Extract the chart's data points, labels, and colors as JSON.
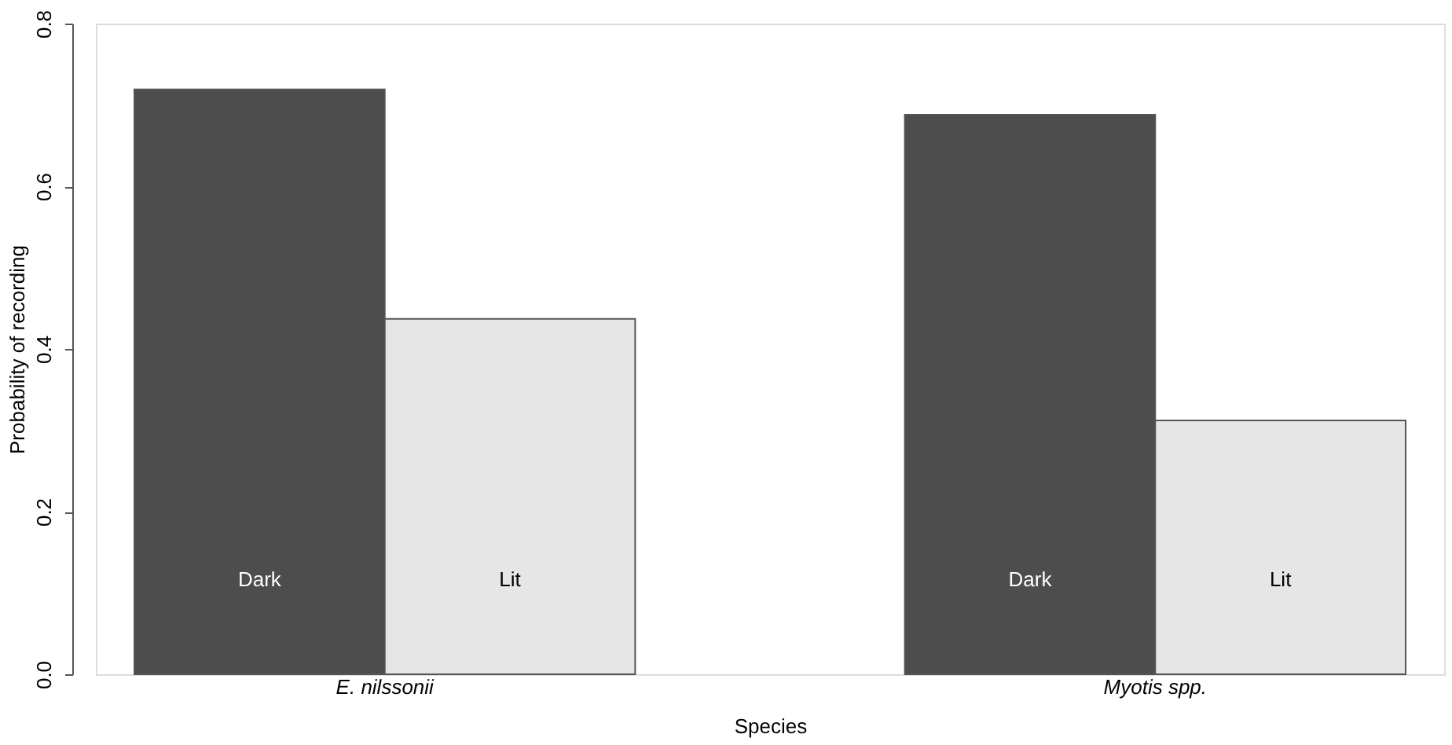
{
  "chart_data": {
    "type": "bar",
    "xlabel": "Species",
    "ylabel": "Probability of recording",
    "categories": [
      "E. nilssonii",
      "Myotis spp."
    ],
    "series": [
      {
        "name": "Dark",
        "color": "#4d4d4d",
        "values": [
          0.719,
          0.688
        ]
      },
      {
        "name": "Lit",
        "color": "#e6e6e6",
        "values": [
          0.437,
          0.312
        ]
      }
    ],
    "ylim": [
      0,
      0.8
    ],
    "yticks": [
      {
        "value": 0,
        "label": "0.0"
      },
      {
        "value": 0.2,
        "label": "0.2"
      },
      {
        "value": 0.4,
        "label": "0.4"
      },
      {
        "value": 0.6,
        "label": "0.6"
      },
      {
        "value": 0.8,
        "label": "0.8"
      }
    ],
    "grid": false,
    "legend": false
  }
}
